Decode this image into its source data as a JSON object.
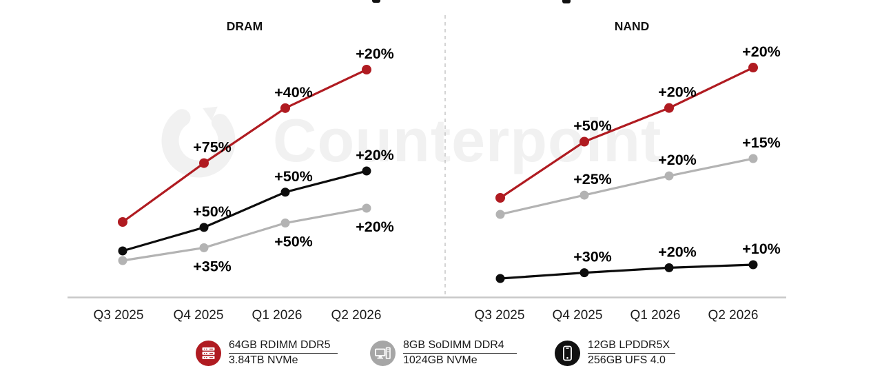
{
  "watermark": {
    "brand": "Counterpoint"
  },
  "chart_data": [
    {
      "type": "line",
      "title": "DRAM",
      "categories": [
        "Q3 2025",
        "Q4 2025",
        "Q1 2026",
        "Q2 2026"
      ],
      "legend_position": "bottom",
      "y_axis": "hidden (indexed price level, labels show QoQ % change)",
      "series": [
        {
          "name": "8GB SoDIMM DDR4",
          "color": "#b3b3b3",
          "label_side": "below",
          "qoq_pct_change": [
            null,
            35,
            50,
            20
          ],
          "labels": [
            "",
            "+35%",
            "+50%",
            "+20%"
          ]
        },
        {
          "name": "12GB LPDDR5X",
          "color": "#0d0d0d",
          "label_side": "above",
          "qoq_pct_change": [
            null,
            50,
            50,
            20
          ],
          "labels": [
            "",
            "+50%",
            "+50%",
            "+20%"
          ]
        },
        {
          "name": "64GB RDIMM DDR5",
          "color": "#b01b21",
          "label_side": "above",
          "qoq_pct_change": [
            null,
            75,
            40,
            20
          ],
          "labels": [
            "",
            "+75%",
            "+40%",
            "+20%"
          ]
        }
      ]
    },
    {
      "type": "line",
      "title": "NAND",
      "categories": [
        "Q3 2025",
        "Q4 2025",
        "Q1 2026",
        "Q2 2026"
      ],
      "legend_position": "bottom",
      "y_axis": "hidden (indexed price level, labels show QoQ % change)",
      "series": [
        {
          "name": "1024GB NVMe",
          "color": "#b3b3b3",
          "label_side": "above",
          "qoq_pct_change": [
            null,
            25,
            20,
            15
          ],
          "labels": [
            "",
            "+25%",
            "+20%",
            "+15%"
          ]
        },
        {
          "name": "256GB UFS 4.0",
          "color": "#0d0d0d",
          "label_side": "above",
          "qoq_pct_change": [
            null,
            30,
            20,
            10
          ],
          "labels": [
            "",
            "+30%",
            "+20%",
            "+10%"
          ]
        },
        {
          "name": "3.84TB NVMe",
          "color": "#b01b21",
          "label_side": "above",
          "qoq_pct_change": [
            null,
            50,
            20,
            20
          ],
          "labels": [
            "",
            "+50%",
            "+20%",
            "+20%"
          ]
        }
      ]
    }
  ],
  "legend": {
    "items": [
      {
        "icon": "server-icon",
        "color": "#b01b21",
        "line1": "64GB RDIMM DDR5",
        "line2": "3.84TB NVMe"
      },
      {
        "icon": "desktop-pc-icon",
        "color": "#a6a6a6",
        "line1": "8GB SoDIMM DDR4",
        "line2": "1024GB NVMe"
      },
      {
        "icon": "smartphone-icon",
        "color": "#111111",
        "line1": "12GB LPDDR5X",
        "line2": "256GB UFS 4.0"
      }
    ]
  }
}
